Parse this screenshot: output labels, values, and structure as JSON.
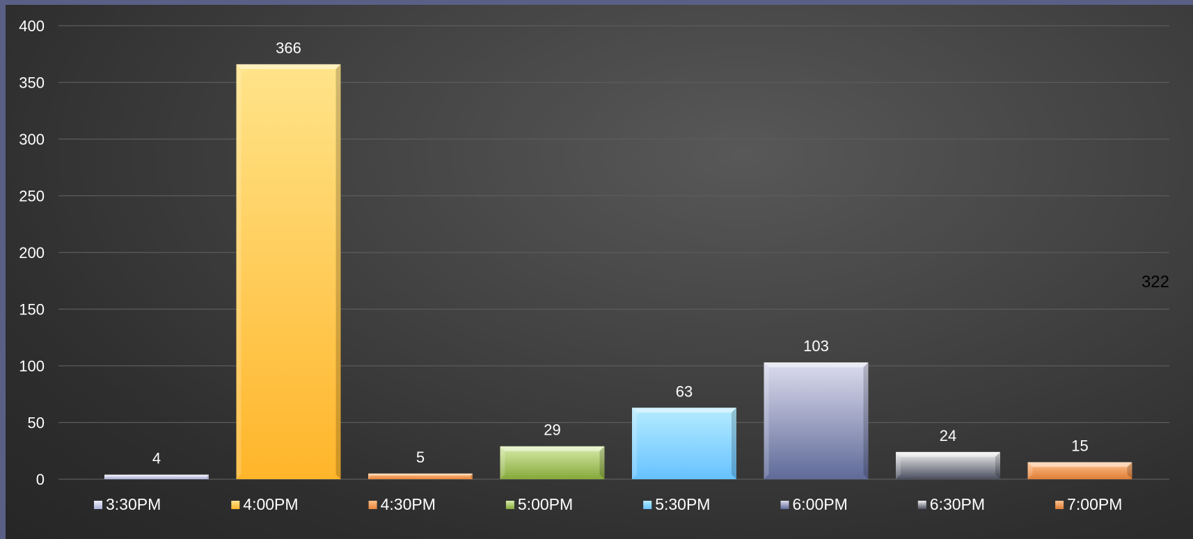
{
  "chart_data": {
    "type": "bar",
    "categories": [
      "3:30PM",
      "4:00PM",
      "4:30PM",
      "5:00PM",
      "5:30PM",
      "6:00PM",
      "6:30PM",
      "7:00PM"
    ],
    "values": [
      4,
      366,
      5,
      29,
      63,
      103,
      24,
      15
    ],
    "ylim": [
      0,
      400
    ],
    "yticks": [
      0,
      50,
      100,
      150,
      200,
      250,
      300,
      350,
      400
    ],
    "grid": true,
    "legend_position": "bottom",
    "annotation": "322",
    "colors": [
      [
        "#eef0fb",
        "#aab0d6"
      ],
      [
        "#ffe48a",
        "#ffb52a"
      ],
      [
        "#ffc089",
        "#e8853a"
      ],
      [
        "#d8ecaa",
        "#86a83a"
      ],
      [
        "#b6ecff",
        "#66c2ff"
      ],
      [
        "#dcdcee",
        "#5f6a98"
      ],
      [
        "#f2f2f2",
        "#4a4e5e"
      ],
      [
        "#ffc28e",
        "#e07d35"
      ]
    ]
  }
}
